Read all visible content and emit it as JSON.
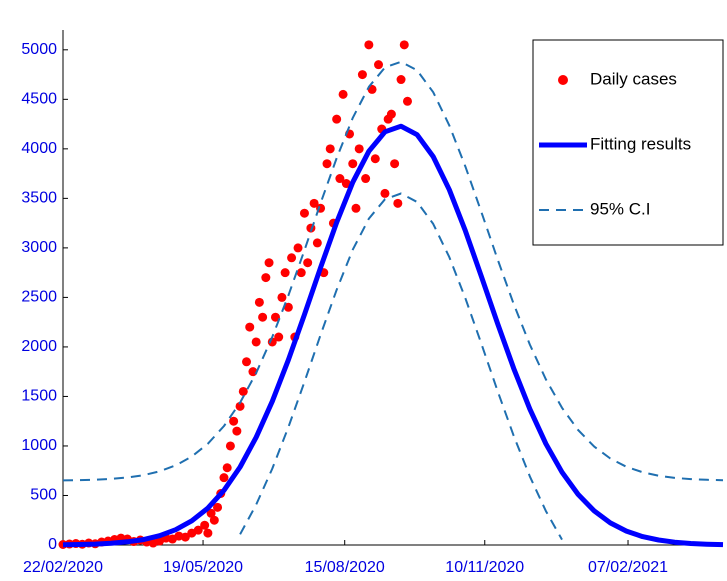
{
  "chart_data": {
    "type": "scatter-line",
    "xlim": [
      0,
      410
    ],
    "ylim": [
      0,
      5200
    ],
    "xticks": [
      {
        "value": 0,
        "label": "22/02/2020"
      },
      {
        "value": 87,
        "label": "19/05/2020"
      },
      {
        "value": 175,
        "label": "15/08/2020"
      },
      {
        "value": 262,
        "label": "10/11/2020"
      },
      {
        "value": 351,
        "label": "07/02/2021"
      }
    ],
    "yticks": [
      0,
      500,
      1000,
      1500,
      2000,
      2500,
      3000,
      3500,
      4000,
      4500,
      5000
    ],
    "legend": "upper right",
    "series": [
      {
        "name": "Daily cases",
        "kind": "scatter",
        "color": "#ff0000",
        "x": [
          0,
          4,
          8,
          12,
          16,
          20,
          24,
          28,
          32,
          36,
          40,
          44,
          48,
          52,
          56,
          60,
          64,
          68,
          72,
          76,
          80,
          84,
          88,
          90,
          92,
          94,
          96,
          98,
          100,
          102,
          104,
          106,
          108,
          110,
          112,
          114,
          116,
          118,
          120,
          122,
          124,
          126,
          128,
          130,
          132,
          134,
          136,
          138,
          140,
          142,
          144,
          146,
          148,
          150,
          152,
          154,
          156,
          158,
          160,
          162,
          164,
          166,
          168,
          170,
          172,
          174,
          176,
          178,
          180,
          182,
          184,
          186,
          188,
          190,
          192,
          194,
          196,
          198,
          200,
          202,
          204,
          206,
          208,
          210,
          212,
          214
        ],
        "values": [
          5,
          10,
          15,
          8,
          20,
          12,
          30,
          40,
          55,
          70,
          60,
          35,
          50,
          30,
          20,
          40,
          70,
          60,
          90,
          80,
          120,
          150,
          200,
          120,
          320,
          250,
          380,
          520,
          680,
          780,
          1000,
          1250,
          1150,
          1400,
          1550,
          1850,
          2200,
          1750,
          2050,
          2450,
          2300,
          2700,
          2850,
          2050,
          2300,
          2100,
          2500,
          2750,
          2400,
          2900,
          2100,
          3000,
          2750,
          3350,
          2850,
          3200,
          3450,
          3050,
          3400,
          2750,
          3850,
          4000,
          3250,
          4300,
          3700,
          4550,
          3650,
          4150,
          3850,
          3400,
          4000,
          4750,
          3700,
          5050,
          4600,
          3900,
          4850,
          4200,
          3550,
          4300,
          4350,
          3850,
          3450,
          4700,
          5050,
          4480
        ]
      },
      {
        "name": "Fitting results",
        "kind": "line",
        "color": "#0000ff",
        "dash": false,
        "x": [
          0,
          10,
          20,
          30,
          40,
          50,
          60,
          70,
          80,
          90,
          100,
          110,
          120,
          130,
          140,
          150,
          160,
          170,
          180,
          190,
          200,
          210,
          220,
          230,
          240,
          250,
          260,
          270,
          280,
          290,
          300,
          310,
          320,
          330,
          340,
          350,
          360,
          370,
          380,
          390,
          400,
          410
        ],
        "values": [
          2,
          5,
          9,
          17,
          32,
          55,
          94,
          154,
          244,
          373,
          552,
          788,
          1088,
          1451,
          1870,
          2328,
          2802,
          3258,
          3663,
          3976,
          4172,
          4229,
          4143,
          3922,
          3587,
          3171,
          2708,
          2235,
          1783,
          1374,
          1022,
          735,
          511,
          344,
          223,
          140,
          85,
          50,
          28,
          15,
          8,
          4
        ]
      },
      {
        "name": "95% C.I",
        "kind": "line",
        "color": "#1f6fb0",
        "dash": true,
        "x": [
          0,
          10,
          20,
          30,
          40,
          50,
          60,
          70,
          80,
          90,
          100,
          110,
          120,
          130,
          140,
          150,
          160,
          170,
          180,
          190,
          200,
          210,
          220,
          230,
          240,
          250,
          260,
          270,
          280,
          290,
          300,
          310,
          320,
          330,
          340,
          350,
          360,
          370,
          380,
          390,
          400,
          410
        ],
        "values": [
          652,
          655,
          659,
          667,
          682,
          705,
          744,
          804,
          894,
          1023,
          1202,
          1438,
          1738,
          2101,
          2520,
          2978,
          3452,
          3908,
          4313,
          4626,
          4822,
          4879,
          4793,
          4572,
          4237,
          3821,
          3358,
          2885,
          2433,
          2024,
          1672,
          1385,
          1161,
          994,
          873,
          790,
          735,
          700,
          678,
          665,
          658,
          654
        ]
      },
      {
        "kind": "line",
        "color": "#1f6fb0",
        "dash": true,
        "x": [
          0,
          10,
          20,
          30,
          40,
          50,
          60,
          70,
          80,
          90,
          100,
          110,
          120,
          130,
          140,
          150,
          160,
          170,
          180,
          190,
          200,
          210,
          220,
          230,
          240,
          250,
          260,
          270,
          280,
          290,
          300,
          310,
          320,
          330,
          340,
          350,
          360,
          370,
          380,
          390,
          400,
          410
        ],
        "values": [
          null,
          null,
          null,
          null,
          null,
          null,
          null,
          null,
          null,
          null,
          null,
          108,
          408,
          771,
          1190,
          1648,
          2122,
          2578,
          2983,
          3296,
          3492,
          3549,
          3463,
          3242,
          2907,
          2491,
          2028,
          1555,
          1103,
          694,
          342,
          55,
          null,
          null,
          null,
          null,
          null,
          null,
          null,
          null,
          null,
          null
        ]
      }
    ]
  }
}
